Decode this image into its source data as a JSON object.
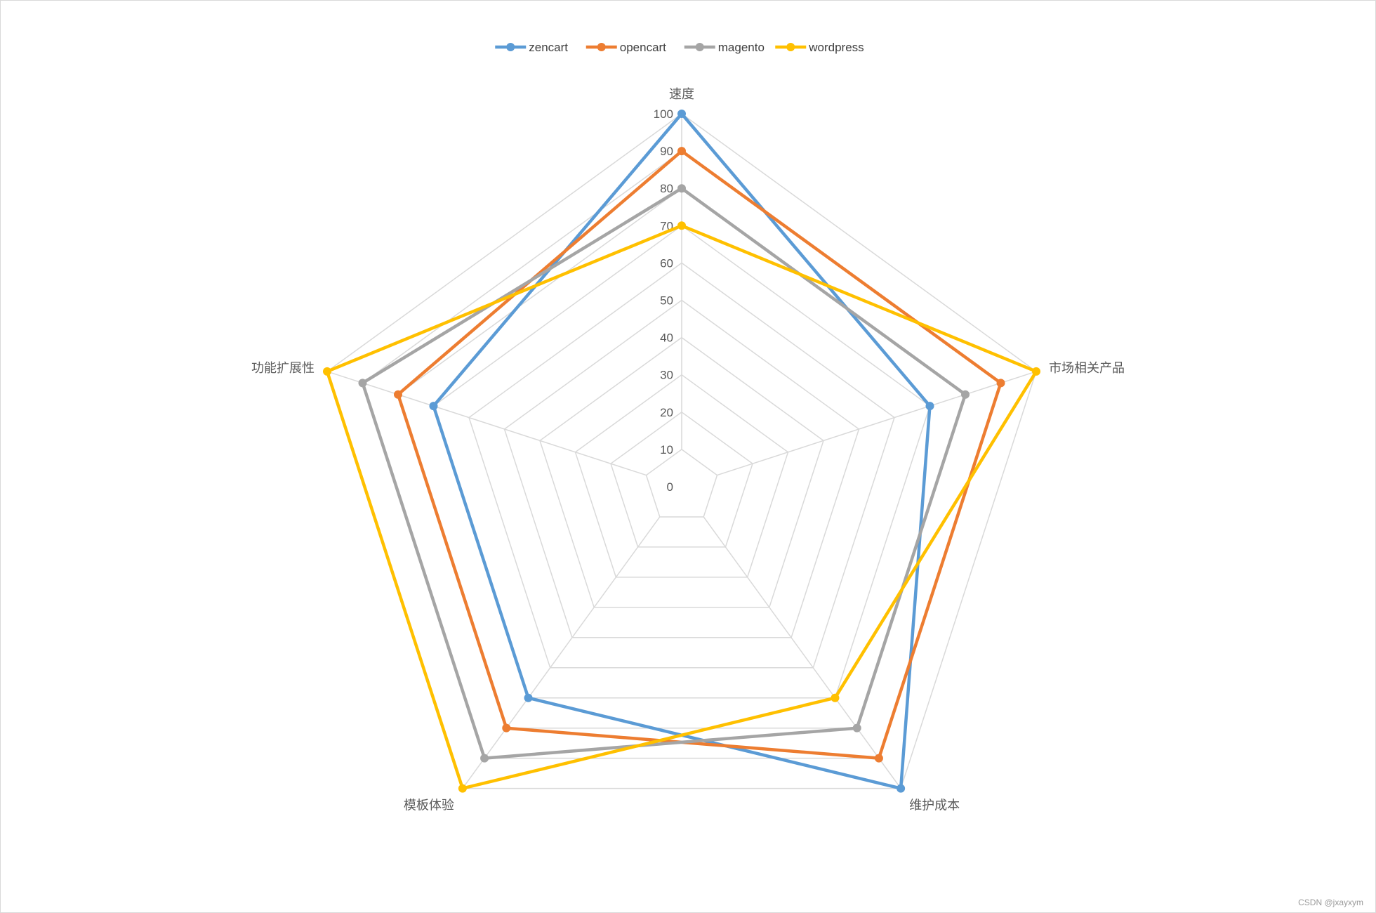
{
  "chart_data": {
    "type": "radar",
    "axes": [
      "速度",
      "市场相关产品",
      "维护成本",
      "模板体验",
      "功能扩展性"
    ],
    "rlim": [
      0,
      100
    ],
    "ticks": [
      0,
      10,
      20,
      30,
      40,
      50,
      60,
      70,
      80,
      90,
      100
    ],
    "grid": true,
    "legend_position": "top",
    "series": [
      {
        "name": "zencart",
        "values": [
          100,
          70,
          100,
          70,
          70
        ],
        "color": "#5B9BD5"
      },
      {
        "name": "opencart",
        "values": [
          90,
          90,
          90,
          80,
          80
        ],
        "color": "#ED7D31"
      },
      {
        "name": "magento",
        "values": [
          80,
          80,
          80,
          90,
          90
        ],
        "color": "#A5A5A5"
      },
      {
        "name": "wordpress",
        "values": [
          70,
          100,
          70,
          100,
          100
        ],
        "color": "#FFC000"
      }
    ],
    "grid_color": "#d9d9d9"
  },
  "watermark": "CSDN @jxayxym"
}
